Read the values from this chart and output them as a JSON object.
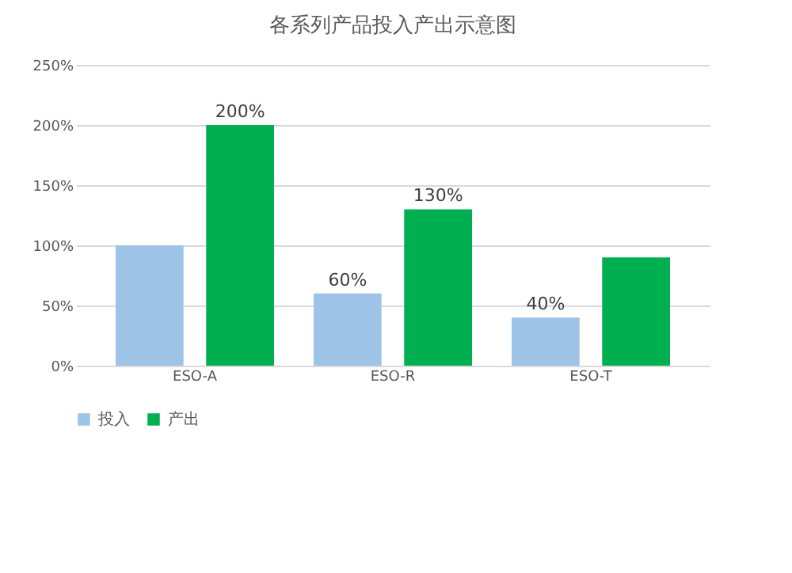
{
  "chart_data": {
    "type": "bar",
    "title": "各系列产品投入产出示意图",
    "categories": [
      "ESO-A",
      "ESO-R",
      "ESO-T"
    ],
    "series": [
      {
        "name": "投入",
        "color": "#9dc3e6",
        "values": [
          100,
          60,
          40
        ],
        "value_labels": [
          null,
          "60%",
          "40%"
        ]
      },
      {
        "name": "产出",
        "color": "#00b050",
        "values": [
          200,
          130,
          90
        ],
        "value_labels": [
          "200%",
          "130%",
          null
        ]
      }
    ],
    "ylim": [
      0,
      250
    ],
    "yticks": [
      {
        "value": 0,
        "label": "0%"
      },
      {
        "value": 50,
        "label": "50%"
      },
      {
        "value": 100,
        "label": "100%"
      },
      {
        "value": 150,
        "label": "150%"
      },
      {
        "value": 200,
        "label": "200%"
      },
      {
        "value": 250,
        "label": "250%"
      }
    ],
    "grid": "y",
    "legend": "bottom"
  }
}
